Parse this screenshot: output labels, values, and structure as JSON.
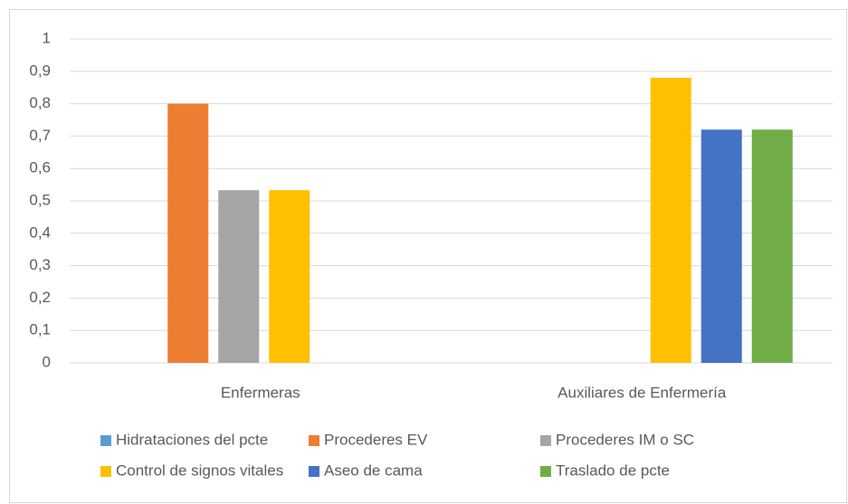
{
  "chart_data": {
    "type": "bar",
    "categories": [
      "Enfermeras",
      "Auxiliares de Enfermería"
    ],
    "series": [
      {
        "name": "Hidrataciones del pcte",
        "color": "#5b9bd5",
        "values": [
          0,
          0
        ]
      },
      {
        "name": "Procederes EV",
        "color": "#ed7d31",
        "values": [
          0.8,
          0
        ]
      },
      {
        "name": "Procederes IM o SC",
        "color": "#a5a5a5",
        "values": [
          0.533,
          0
        ]
      },
      {
        "name": "Control de signos vitales",
        "color": "#ffc000",
        "values": [
          0.533,
          0.88
        ]
      },
      {
        "name": "Aseo de cama",
        "color": "#4472c4",
        "values": [
          0,
          0.72
        ]
      },
      {
        "name": "Traslado de pcte",
        "color": "#70ad47",
        "values": [
          0,
          0.72
        ]
      }
    ],
    "ylim": [
      0,
      1
    ],
    "yticks": [
      0,
      {
        "value": 0.1,
        "label": "0,1"
      },
      {
        "value": 0.2,
        "label": "0,2"
      },
      {
        "value": 0.3,
        "label": "0,3"
      },
      {
        "value": 0.4,
        "label": "0,4"
      },
      {
        "value": 0.5,
        "label": "0,5"
      },
      {
        "value": 0.6,
        "label": "0,6"
      },
      {
        "value": 0.7,
        "label": "0,7"
      },
      {
        "value": 0.8,
        "label": "0,8"
      },
      {
        "value": 0.9,
        "label": "0,9"
      },
      1
    ],
    "grid": true,
    "legend": "bottom"
  }
}
